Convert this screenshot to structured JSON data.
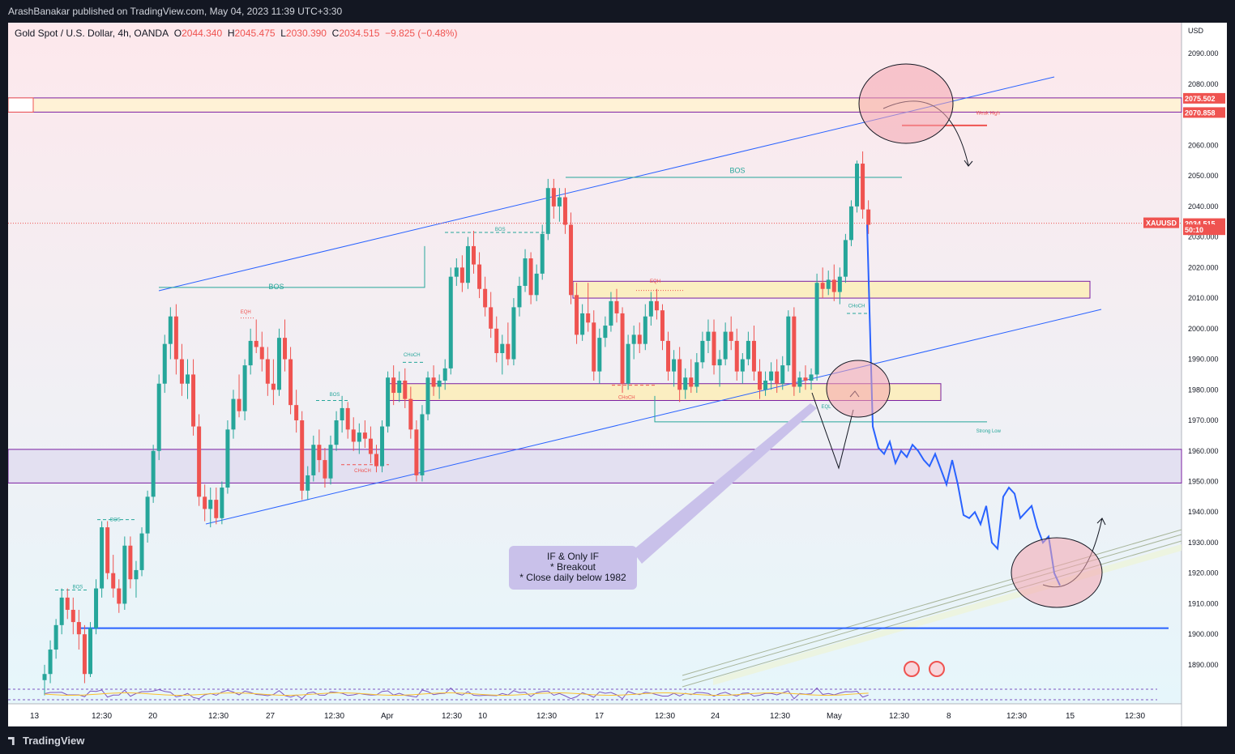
{
  "header": {
    "publish_line": "ArashBanakar published on TradingView.com, May 04, 2023 11:39 UTC+3:30"
  },
  "footer": {
    "brand": "TradingView"
  },
  "legend": {
    "symbol": "Gold Spot / U.S. Dollar, 4h, OANDA",
    "open_label": "O",
    "open": "2044.340",
    "high_label": "H",
    "high": "2045.475",
    "low_label": "L",
    "low": "2030.390",
    "close_label": "C",
    "close": "2034.515",
    "change": "−9.825 (−0.48%)"
  },
  "callout": {
    "line1": "IF & Only IF",
    "line2": "* Breakout",
    "line3": "* Close daily below 1982"
  },
  "colors": {
    "up": "#26a69a",
    "down": "#ef5350",
    "projection": "#2962ff",
    "trendline": "#2962ff",
    "zone_fill": "#fbeec1",
    "zone_border": "#7b1fa2"
  },
  "chart_data": {
    "type": "candlestick",
    "symbol": "XAUUSD",
    "timeframe": "4h",
    "currency": "USD",
    "price_axis_ticks": [
      "2090.000",
      "2080.000",
      "2070.000",
      "2060.000",
      "2050.000",
      "2040.000",
      "2030.000",
      "2020.000",
      "2010.000",
      "2000.000",
      "1990.000",
      "1980.000",
      "1970.000",
      "1960.000",
      "1950.000",
      "1940.000",
      "1930.000",
      "1920.000",
      "1910.000",
      "1900.000",
      "1890.000"
    ],
    "price_ticks_values": [
      2090,
      2080,
      2070,
      2060,
      2050,
      2040,
      2030,
      2020,
      2010,
      2000,
      1990,
      1980,
      1970,
      1960,
      1950,
      1940,
      1930,
      1920,
      1910,
      1900,
      1890
    ],
    "time_axis_labels": [
      "13",
      "12:30",
      "20",
      "12:30",
      "27",
      "12:30",
      "Apr",
      "12:30",
      "10",
      "12:30",
      "17",
      "12:30",
      "24",
      "12:30",
      "May",
      "12:30",
      "8",
      "12:30",
      "15",
      "12:30"
    ],
    "ylim": [
      1886,
      2098
    ],
    "price_labels": [
      {
        "text": "2075.502",
        "value": 2075.502,
        "color": "#ef5350"
      },
      {
        "text": "2070.858",
        "value": 2070.858,
        "color": "#ef5350"
      },
      {
        "text": "2034.515",
        "value": 2034.515,
        "color": "#ef5350"
      },
      {
        "text": "50:10",
        "value": 2032.5,
        "color": "#ef5350"
      }
    ],
    "symbol_tag": "XAUUSD",
    "close_price": 2034.515,
    "annotations": [
      {
        "text": "BOS",
        "x": 0.222,
        "price": 2013
      },
      {
        "text": "BOS",
        "x": 0.615,
        "price": 2051
      },
      {
        "text": "BOS",
        "x": 0.415,
        "price": 2032
      },
      {
        "text": "BOS",
        "x": 0.274,
        "price": 1978
      },
      {
        "text": "BOS",
        "x": 0.087,
        "price": 1937
      },
      {
        "text": "BOS",
        "x": 0.055,
        "price": 1915
      },
      {
        "text": "CHoCH",
        "x": 0.337,
        "price": 1991
      },
      {
        "text": "CHoCH",
        "x": 0.295,
        "price": 1953
      },
      {
        "text": "CHoCH",
        "x": 0.52,
        "price": 1977
      },
      {
        "text": "CHoCH",
        "x": 0.716,
        "price": 2007
      },
      {
        "text": "EQH",
        "x": 0.198,
        "price": 2005
      },
      {
        "text": "EQH",
        "x": 0.547,
        "price": 2015
      },
      {
        "text": "EQL",
        "x": 0.693,
        "price": 1974
      },
      {
        "text": "Weak High",
        "x": 0.825,
        "price": 2070
      },
      {
        "text": "Strong Low",
        "x": 0.825,
        "price": 1966
      }
    ],
    "zones": [
      {
        "name": "supply",
        "from": 2070.858,
        "to": 2075.502
      },
      {
        "name": "mid",
        "from": 2010,
        "to": 2015.5
      },
      {
        "name": "demand",
        "from": 1976.5,
        "to": 1982
      },
      {
        "name": "lower-range",
        "from": 1949.5,
        "to": 1960.5
      }
    ],
    "horizontal_lines": [
      {
        "name": "support-1902",
        "price": 1902
      }
    ],
    "projection_path": [
      2034,
      1968,
      1961,
      1959,
      1963,
      1956,
      1960,
      1958,
      1962,
      1960,
      1957,
      1955,
      1959,
      1954,
      1949,
      1957,
      1949,
      1939,
      1938,
      1940,
      1936,
      1942,
      1930,
      1928,
      1945,
      1948,
      1946,
      1938,
      1940,
      1942,
      1935,
      1930,
      1932,
      1920,
      1916
    ],
    "candles": [
      [
        1885,
        1890,
        1880,
        1887
      ],
      [
        1887,
        1898,
        1884,
        1895
      ],
      [
        1895,
        1905,
        1892,
        1903
      ],
      [
        1903,
        1915,
        1900,
        1912
      ],
      [
        1912,
        1915,
        1905,
        1908
      ],
      [
        1908,
        1912,
        1900,
        1904
      ],
      [
        1904,
        1908,
        1895,
        1900
      ],
      [
        1900,
        1903,
        1884,
        1887
      ],
      [
        1887,
        1904,
        1886,
        1902
      ],
      [
        1902,
        1918,
        1900,
        1915
      ],
      [
        1915,
        1937,
        1912,
        1935
      ],
      [
        1935,
        1937,
        1918,
        1920
      ],
      [
        1920,
        1926,
        1912,
        1915
      ],
      [
        1915,
        1918,
        1907,
        1910
      ],
      [
        1910,
        1932,
        1908,
        1929
      ],
      [
        1929,
        1932,
        1915,
        1918
      ],
      [
        1918,
        1924,
        1912,
        1921
      ],
      [
        1921,
        1935,
        1919,
        1933
      ],
      [
        1933,
        1947,
        1930,
        1945
      ],
      [
        1945,
        1962,
        1943,
        1960
      ],
      [
        1960,
        1985,
        1957,
        1982
      ],
      [
        1982,
        1998,
        1979,
        1995
      ],
      [
        1995,
        2007,
        1990,
        2004
      ],
      [
        2004,
        2008,
        1985,
        1990
      ],
      [
        1990,
        1995,
        1978,
        1982
      ],
      [
        1982,
        1990,
        1977,
        1985
      ],
      [
        1985,
        1990,
        1965,
        1968
      ],
      [
        1968,
        1972,
        1942,
        1945
      ],
      [
        1945,
        1949,
        1937,
        1941
      ],
      [
        1941,
        1948,
        1935,
        1944
      ],
      [
        1944,
        1948,
        1936,
        1938
      ],
      [
        1938,
        1950,
        1936,
        1948
      ],
      [
        1948,
        1970,
        1946,
        1967
      ],
      [
        1967,
        1980,
        1964,
        1977
      ],
      [
        1977,
        1985,
        1971,
        1973
      ],
      [
        1973,
        1990,
        1970,
        1988
      ],
      [
        1988,
        2000,
        1985,
        1996
      ],
      [
        1996,
        2003,
        1992,
        1994
      ],
      [
        1994,
        1999,
        1986,
        1990
      ],
      [
        1990,
        1994,
        1978,
        1982
      ],
      [
        1982,
        1990,
        1975,
        1980
      ],
      [
        1980,
        2000,
        1978,
        1997
      ],
      [
        1997,
        2003,
        1986,
        1990
      ],
      [
        1990,
        1994,
        1972,
        1975
      ],
      [
        1975,
        1980,
        1966,
        1970
      ],
      [
        1970,
        1973,
        1944,
        1947
      ],
      [
        1947,
        1955,
        1944,
        1952
      ],
      [
        1952,
        1965,
        1950,
        1962
      ],
      [
        1962,
        1967,
        1953,
        1957
      ],
      [
        1957,
        1961,
        1948,
        1951
      ],
      [
        1951,
        1965,
        1949,
        1962
      ],
      [
        1962,
        1973,
        1960,
        1970
      ],
      [
        1970,
        1978,
        1966,
        1974
      ],
      [
        1974,
        1976,
        1964,
        1967
      ],
      [
        1967,
        1971,
        1960,
        1963
      ],
      [
        1963,
        1969,
        1959,
        1966
      ],
      [
        1966,
        1970,
        1961,
        1964
      ],
      [
        1964,
        1968,
        1956,
        1959
      ],
      [
        1959,
        1962,
        1953,
        1955
      ],
      [
        1955,
        1970,
        1953,
        1968
      ],
      [
        1968,
        1986,
        1966,
        1984
      ],
      [
        1984,
        1988,
        1975,
        1979
      ],
      [
        1979,
        1986,
        1976,
        1983
      ],
      [
        1983,
        1987,
        1974,
        1977
      ],
      [
        1977,
        1981,
        1964,
        1967
      ],
      [
        1967,
        1970,
        1950,
        1952
      ],
      [
        1952,
        1975,
        1950,
        1972
      ],
      [
        1972,
        1986,
        1970,
        1984
      ],
      [
        1984,
        1988,
        1978,
        1981
      ],
      [
        1981,
        1985,
        1977,
        1983
      ],
      [
        1983,
        1990,
        1980,
        1987
      ],
      [
        1987,
        2020,
        1985,
        2017
      ],
      [
        2017,
        2023,
        2014,
        2020
      ],
      [
        2020,
        2024,
        2012,
        2015
      ],
      [
        2015,
        2030,
        2013,
        2027
      ],
      [
        2027,
        2032,
        2018,
        2021
      ],
      [
        2021,
        2025,
        2010,
        2013
      ],
      [
        2013,
        2017,
        2004,
        2007
      ],
      [
        2007,
        2012,
        1997,
        2000
      ],
      [
        2000,
        2004,
        1989,
        1992
      ],
      [
        1992,
        1998,
        1985,
        1995
      ],
      [
        1995,
        2002,
        1988,
        1990
      ],
      [
        1990,
        2010,
        1988,
        2007
      ],
      [
        2007,
        2017,
        2004,
        2014
      ],
      [
        2014,
        2026,
        2012,
        2023
      ],
      [
        2023,
        2025,
        2008,
        2011
      ],
      [
        2011,
        2021,
        2009,
        2018
      ],
      [
        2018,
        2034,
        2016,
        2031
      ],
      [
        2031,
        2049,
        2029,
        2046
      ],
      [
        2046,
        2049,
        2036,
        2040
      ],
      [
        2040,
        2046,
        2035,
        2043
      ],
      [
        2043,
        2046,
        2031,
        2034
      ],
      [
        2034,
        2038,
        2008,
        2011
      ],
      [
        2011,
        2015,
        1995,
        1998
      ],
      [
        1998,
        2008,
        1996,
        2005
      ],
      [
        2005,
        2015,
        1999,
        2002
      ],
      [
        2002,
        2006,
        1983,
        1986
      ],
      [
        1986,
        2000,
        1982,
        1997
      ],
      [
        1997,
        2004,
        1994,
        2001
      ],
      [
        2001,
        2012,
        1999,
        2009
      ],
      [
        2009,
        2013,
        2002,
        2005
      ],
      [
        2005,
        2007,
        1979,
        1982
      ],
      [
        1982,
        1998,
        1980,
        1995
      ],
      [
        1995,
        2001,
        1990,
        1998
      ],
      [
        1998,
        2002,
        1992,
        1995
      ],
      [
        1995,
        2008,
        1993,
        2004
      ],
      [
        2004,
        2012,
        2001,
        2009
      ],
      [
        2009,
        2013,
        2003,
        2006
      ],
      [
        2006,
        2008,
        1993,
        1996
      ],
      [
        1996,
        1999,
        1983,
        1986
      ],
      [
        1986,
        1993,
        1981,
        1990
      ],
      [
        1990,
        1994,
        1976,
        1980
      ],
      [
        1980,
        1987,
        1977,
        1984
      ],
      [
        1984,
        1990,
        1979,
        1981
      ],
      [
        1981,
        1992,
        1979,
        1989
      ],
      [
        1989,
        1999,
        1987,
        1996
      ],
      [
        1996,
        2003,
        1992,
        1999
      ],
      [
        1999,
        2003,
        1985,
        1988
      ],
      [
        1988,
        1993,
        1981,
        1990
      ],
      [
        1990,
        2002,
        1988,
        1999
      ],
      [
        1999,
        2004,
        1993,
        1996
      ],
      [
        1996,
        2000,
        1983,
        1986
      ],
      [
        1986,
        1992,
        1982,
        1990
      ],
      [
        1990,
        1999,
        1988,
        1996
      ],
      [
        1996,
        2001,
        1983,
        1986
      ],
      [
        1986,
        1990,
        1977,
        1980
      ],
      [
        1980,
        1986,
        1978,
        1983
      ],
      [
        1983,
        1989,
        1980,
        1986
      ],
      [
        1986,
        1990,
        1979,
        1982
      ],
      [
        1982,
        1991,
        1980,
        1988
      ],
      [
        1988,
        2006,
        1986,
        2004
      ],
      [
        2004,
        2007,
        1978,
        1981
      ],
      [
        1981,
        1986,
        1979,
        1984
      ],
      [
        1984,
        1988,
        1980,
        1983
      ],
      [
        1983,
        1987,
        1980,
        1985
      ],
      [
        1985,
        2018,
        1983,
        2015
      ],
      [
        2015,
        2020,
        2010,
        2013
      ],
      [
        2013,
        2019,
        2011,
        2016
      ],
      [
        2016,
        2021,
        2009,
        2012
      ],
      [
        2012,
        2020,
        2008,
        2017
      ],
      [
        2017,
        2031,
        2015,
        2029
      ],
      [
        2029,
        2042,
        2027,
        2040
      ],
      [
        2040,
        2055,
        2038,
        2054
      ],
      [
        2054,
        2058,
        2036,
        2039
      ],
      [
        2039,
        2042,
        2031,
        2034
      ]
    ]
  }
}
